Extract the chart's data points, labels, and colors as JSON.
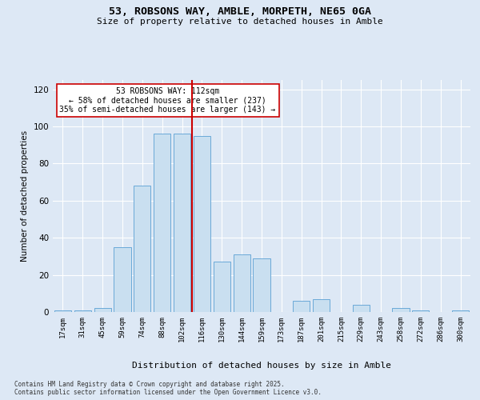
{
  "title1": "53, ROBSONS WAY, AMBLE, MORPETH, NE65 0GA",
  "title2": "Size of property relative to detached houses in Amble",
  "xlabel": "Distribution of detached houses by size in Amble",
  "ylabel": "Number of detached properties",
  "annotation_line1": "53 ROBSONS WAY: 112sqm",
  "annotation_line2": "← 58% of detached houses are smaller (237)",
  "annotation_line3": "35% of semi-detached houses are larger (143) →",
  "bar_color": "#c9dff0",
  "bar_edge_color": "#5a9fd4",
  "vline_color": "#cc0000",
  "bg_color": "#dde8f5",
  "fig_color": "#dde8f5",
  "grid_color": "#ffffff",
  "categories": [
    "17sqm",
    "31sqm",
    "45sqm",
    "59sqm",
    "74sqm",
    "88sqm",
    "102sqm",
    "116sqm",
    "130sqm",
    "144sqm",
    "159sqm",
    "173sqm",
    "187sqm",
    "201sqm",
    "215sqm",
    "229sqm",
    "243sqm",
    "258sqm",
    "272sqm",
    "286sqm",
    "300sqm"
  ],
  "values": [
    1,
    1,
    2,
    35,
    68,
    96,
    96,
    95,
    27,
    31,
    29,
    0,
    6,
    7,
    0,
    4,
    0,
    2,
    1,
    0,
    1
  ],
  "ylim": [
    0,
    125
  ],
  "yticks": [
    0,
    20,
    40,
    60,
    80,
    100,
    120
  ],
  "footer1": "Contains HM Land Registry data © Crown copyright and database right 2025.",
  "footer2": "Contains public sector information licensed under the Open Government Licence v3.0."
}
